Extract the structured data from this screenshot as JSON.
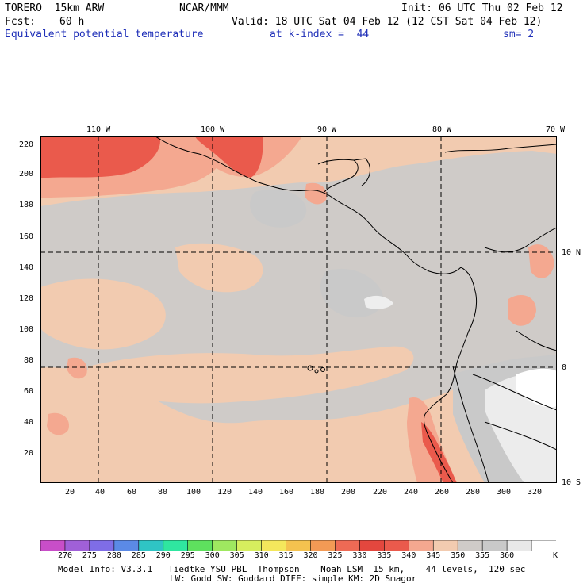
{
  "header": {
    "model": "TORERO  15km ARW",
    "org": "NCAR/MMM",
    "init": "Init: 06 UTC Thu 02 Feb 12",
    "fcst_label": "Fcst:",
    "fcst_value": "60 h",
    "valid": "Valid: 18 UTC Sat 04 Feb 12 (12 CST Sat 04 Feb 12)",
    "field": "Equivalent potential temperature",
    "level": "at k-index =  44",
    "smooth": "sm= 2"
  },
  "map": {
    "top_lon_labels": [
      "110 W",
      "100 W",
      "90 W",
      "80 W",
      "70 W"
    ],
    "right_lat_labels": [
      "10 N",
      "0",
      "10 S"
    ],
    "x_grid_labels": [
      "20",
      "40",
      "60",
      "80",
      "100",
      "120",
      "140",
      "160",
      "180",
      "200",
      "220",
      "240",
      "260",
      "280",
      "300",
      "320"
    ],
    "y_grid_labels": [
      "220",
      "200",
      "180",
      "160",
      "140",
      "120",
      "100",
      "80",
      "60",
      "40",
      "20"
    ],
    "x_range": [
      1,
      334
    ],
    "y_range": [
      1,
      224
    ],
    "gridlines_dashed": true
  },
  "colorbar": {
    "unit": "K",
    "tick_labels": [
      "270",
      "275",
      "280",
      "285",
      "290",
      "295",
      "300",
      "305",
      "310",
      "315",
      "320",
      "325",
      "330",
      "335",
      "340",
      "345",
      "350",
      "355",
      "360"
    ],
    "colors": [
      "#c84ec8",
      "#a060d8",
      "#7f6de6",
      "#5b8ae6",
      "#2fc4c4",
      "#2fe6a0",
      "#5ee05e",
      "#9fe860",
      "#d6ee5e",
      "#f4e75c",
      "#f4c24f",
      "#f39a55",
      "#ee6a55",
      "#e3473e",
      "#ea5a4c",
      "#f4a890",
      "#f2cbb0",
      "#cfcbc8",
      "#c9c9c9",
      "#e9e9e9",
      "#ffffff"
    ]
  },
  "footer": {
    "line1": "Model Info: V3.3.1   Tiedtke YSU PBL  Thompson    Noah LSM  15 km,    44 levels,  120 sec",
    "line2": "LW: Godd SW: Goddard DIFF: simple KM: 2D Smagor"
  }
}
